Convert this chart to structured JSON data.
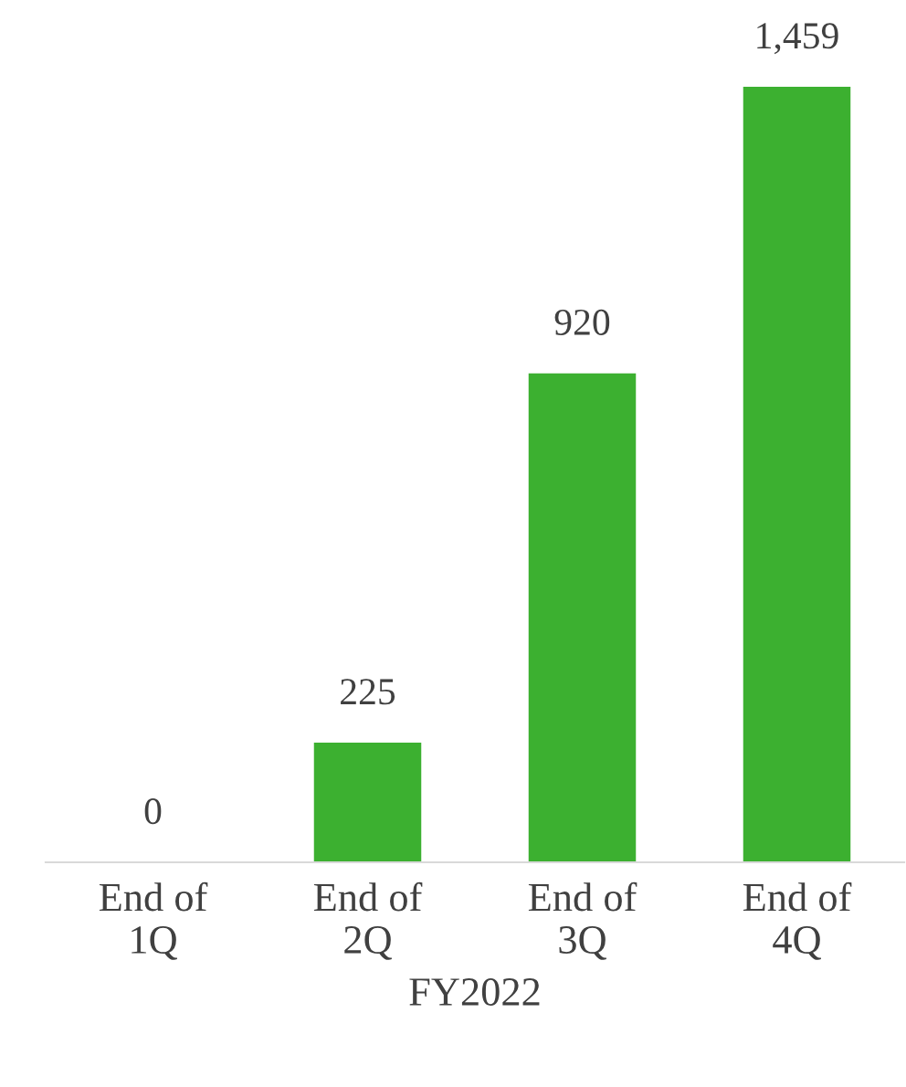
{
  "chart_data": {
    "type": "bar",
    "xlabel": "FY2022",
    "categories": [
      "End of\n1Q",
      "End of\n2Q",
      "End of\n3Q",
      "End of\n4Q"
    ],
    "values": [
      0,
      225,
      920,
      1459
    ],
    "value_labels": [
      "0",
      "225",
      "920",
      "1,459"
    ],
    "color": "#3cb030",
    "grid": false,
    "legend": false,
    "tick_labels": "x"
  }
}
